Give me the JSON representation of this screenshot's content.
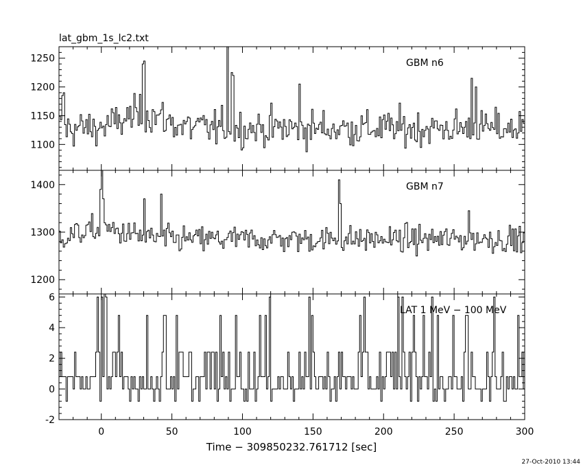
{
  "figure": {
    "file_title": "lat_gbm_1s_lc2.txt",
    "timestamp": "27-Oct-2010 13:44"
  },
  "chart_data": {
    "type": "line",
    "style": "histogram-step",
    "xlabel": "Time − 309850232.761712 [sec]",
    "xlim": [
      -30,
      300
    ],
    "xticks": [
      0,
      50,
      100,
      150,
      200,
      250,
      300
    ],
    "bin_width_sec": 1,
    "panels": [
      {
        "label": "GBM n6",
        "ylim": [
          1055,
          1270
        ],
        "yticks": [
          1100,
          1150,
          1200,
          1250
        ],
        "baseline": 1128,
        "noise": 30,
        "hump": {
          "center": 30,
          "width": 20,
          "amplitude": 25
        },
        "spikes": [
          [
            -28,
            1185
          ],
          [
            -27,
            1190
          ],
          [
            29,
            1240
          ],
          [
            30,
            1245
          ],
          [
            89,
            1270
          ],
          [
            92,
            1225
          ],
          [
            93,
            1220
          ],
          [
            140,
            1205
          ],
          [
            262,
            1215
          ],
          [
            265,
            1200
          ]
        ]
      },
      {
        "label": "GBM n7",
        "ylim": [
          1170,
          1430
        ],
        "yticks": [
          1200,
          1300,
          1400
        ],
        "baseline": 1285,
        "noise": 26,
        "hump": {
          "center": 0,
          "width": 25,
          "amplitude": 20
        },
        "spikes": [
          [
            -1,
            1390
          ],
          [
            0,
            1430
          ],
          [
            1,
            1370
          ],
          [
            30,
            1370
          ],
          [
            42,
            1380
          ],
          [
            168,
            1410
          ],
          [
            169,
            1360
          ],
          [
            260,
            1345
          ],
          [
            275,
            1300
          ]
        ]
      },
      {
        "label": "LAT 1 MeV − 100 MeV",
        "ylim": [
          -2,
          6.2
        ],
        "yticks": [
          -2,
          0,
          2,
          4,
          6
        ],
        "discrete_levels": [
          -0.8,
          0,
          0.8,
          2.4,
          4.8,
          6
        ],
        "mean_rate": 0.7,
        "spikes": [
          [
            -3,
            6
          ],
          [
            0,
            6
          ],
          [
            2,
            7
          ],
          [
            3,
            6
          ],
          [
            45,
            4.8
          ],
          [
            112,
            4.8
          ],
          [
            183,
            4.8
          ],
          [
            210,
            6
          ],
          [
            213,
            6
          ],
          [
            221,
            4.8
          ],
          [
            228,
            4.8
          ],
          [
            234,
            6
          ],
          [
            295,
            4.8
          ]
        ]
      }
    ]
  }
}
